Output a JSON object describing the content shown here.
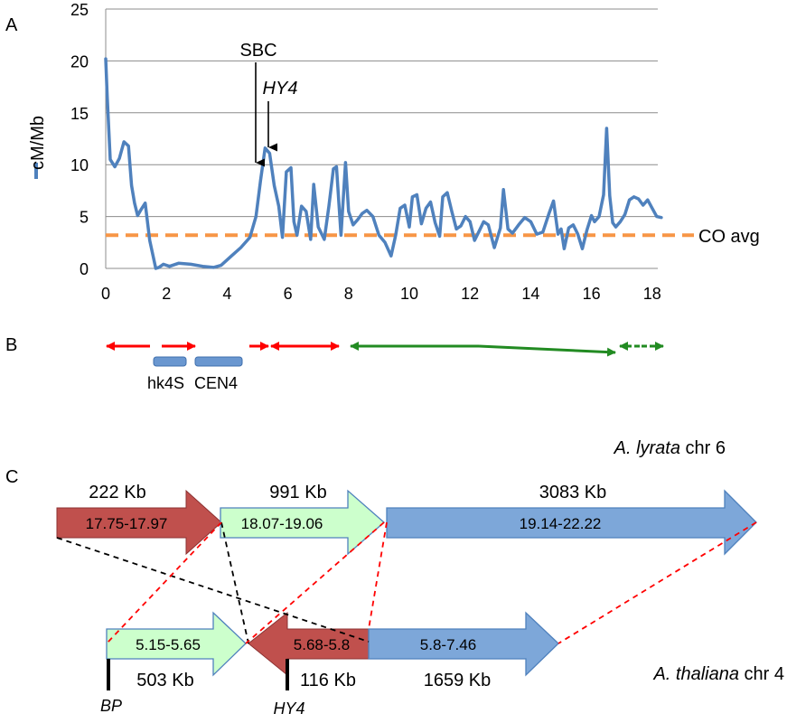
{
  "panel_a": {
    "letter": "A",
    "ylabel": "cM/Mb",
    "yticks": [
      "0",
      "5",
      "10",
      "15",
      "20",
      "25"
    ],
    "xticks": [
      "0",
      "2",
      "4",
      "6",
      "8",
      "10",
      "12",
      "14",
      "16",
      "18"
    ],
    "annotations": {
      "sbc": "SBC",
      "hy4": "HY4"
    },
    "reference_label": "CO avg",
    "colors": {
      "series": "#4f81bd",
      "avg": "#f79646",
      "grid": "#8c8c8c"
    }
  },
  "chart_data": {
    "type": "line",
    "title": "",
    "xlabel": "",
    "ylabel": "cM/Mb",
    "xlim": [
      0,
      18.5
    ],
    "ylim": [
      0,
      25
    ],
    "grid": true,
    "series": [
      {
        "x": [
          0,
          0.05,
          0.15,
          0.3,
          0.45,
          0.6,
          0.75,
          0.85,
          0.95,
          1.05,
          1.15,
          1.3,
          1.45,
          1.65,
          1.75,
          1.9,
          2.1,
          2.4,
          2.8,
          3.2,
          3.55,
          3.8,
          4.1,
          4.45,
          4.75,
          4.95,
          5.1,
          5.25,
          5.4,
          5.55,
          5.7,
          5.82,
          5.95,
          6.1,
          6.2,
          6.3,
          6.45,
          6.6,
          6.75,
          6.85,
          7.0,
          7.2,
          7.35,
          7.5,
          7.6,
          7.75,
          7.9,
          8.0,
          8.15,
          8.3,
          8.45,
          8.6,
          8.8,
          9.0,
          9.2,
          9.4,
          9.55,
          9.7,
          9.85,
          10.0,
          10.1,
          10.25,
          10.4,
          10.55,
          10.7,
          10.85,
          11.0,
          11.1,
          11.25,
          11.4,
          11.55,
          11.7,
          11.85,
          12.0,
          12.15,
          12.3,
          12.45,
          12.6,
          12.8,
          13.0,
          13.1,
          13.25,
          13.4,
          13.6,
          13.8,
          14.0,
          14.2,
          14.4,
          14.6,
          14.75,
          14.9,
          15.0,
          15.1,
          15.25,
          15.4,
          15.55,
          15.7,
          15.85,
          16.0,
          16.1,
          16.25,
          16.4,
          16.5,
          16.6,
          16.7,
          16.8,
          16.95,
          17.1,
          17.25,
          17.4,
          17.55,
          17.7,
          17.85,
          18.0,
          18.15,
          18.3
        ],
        "y": [
          20.2,
          16.5,
          10.5,
          9.8,
          10.6,
          12.2,
          11.8,
          8,
          6.3,
          5.1,
          5.6,
          6.3,
          2.7,
          0,
          0.1,
          0.4,
          0.2,
          0.5,
          0.4,
          0.2,
          0.1,
          0.3,
          1.1,
          2.0,
          3.0,
          5.0,
          8.5,
          11.6,
          11.1,
          8,
          6,
          3.0,
          9.3,
          9.7,
          4.5,
          3.2,
          6,
          5.5,
          2.8,
          8.1,
          4.0,
          2.8,
          6,
          9.6,
          9.8,
          3.2,
          10.2,
          5.5,
          4.2,
          4.7,
          5.3,
          5.6,
          5,
          3.2,
          2.5,
          1.2,
          3.2,
          5.8,
          6.1,
          4,
          6.9,
          7.1,
          4.3,
          5.8,
          6.4,
          4.4,
          3.1,
          6.9,
          7.3,
          5.5,
          3.8,
          4.1,
          5.0,
          4.5,
          2.7,
          3.6,
          4.5,
          4.2,
          2.0,
          3.9,
          7.6,
          3.8,
          3.4,
          4.2,
          4.9,
          4.5,
          3.3,
          3.5,
          5.3,
          6.5,
          3.3,
          3.8,
          1.9,
          3.9,
          4.2,
          3.3,
          1.9,
          3.7,
          5.1,
          4.5,
          5.0,
          7.1,
          13.5,
          7,
          4.4,
          4.0,
          4.5,
          5.2,
          6.6,
          6.9,
          6.7,
          6.1,
          6.6,
          5.8,
          5.0,
          4.9
        ]
      }
    ],
    "reference_lines": [
      {
        "name": "CO avg",
        "y": 3.2
      }
    ],
    "annotations": [
      {
        "text": "SBC",
        "x": 4.95
      },
      {
        "text": "HY4",
        "x": 5.3
      }
    ]
  },
  "panel_b": {
    "letter": "B",
    "labels": {
      "hk4s": "hk4S",
      "cen4": "CEN4"
    },
    "colors": {
      "red": "#ff0000",
      "green": "#228b22",
      "box": "#4f81bd"
    }
  },
  "panel_c": {
    "letter": "C",
    "lyrata_title": {
      "italic": "A. lyrata",
      "rest": " chr 6"
    },
    "thaliana_title": {
      "italic": "A. thaliana",
      "rest": " chr 4"
    },
    "lyrata_arrows": [
      {
        "range": "17.75-17.97",
        "size": "222 Kb",
        "color": "#c0504d"
      },
      {
        "range": "18.07-19.06",
        "size": "991 Kb",
        "color": "#ccffcc"
      },
      {
        "range": "19.14-22.22",
        "size": "3083 Kb",
        "color": "#7da7d9"
      }
    ],
    "thaliana_arrows": [
      {
        "range": "5.15-5.65",
        "size": "503 Kb",
        "color": "#ccffcc"
      },
      {
        "range": "5.68-5.8",
        "size": "116 Kb",
        "color": "#c0504d"
      },
      {
        "range": "5.8-7.46",
        "size": "1659 Kb",
        "color": "#7da7d9"
      }
    ],
    "markers": {
      "bp": "BP",
      "hy4": "HY4"
    }
  }
}
